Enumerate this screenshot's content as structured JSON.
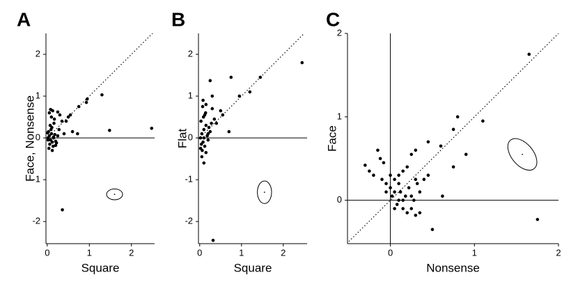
{
  "chart_data": [
    {
      "type": "scatter",
      "panel": "A",
      "x_label": "Square",
      "y_label": "Face, Nonsense",
      "xlim": [
        -0.03,
        2.55
      ],
      "ylim": [
        -2.53,
        2.5
      ],
      "xticks": [
        0,
        1,
        2
      ],
      "yticks": [
        -2,
        -1,
        0,
        1,
        2
      ],
      "hline_at_zero": true,
      "vline_at_zero": false,
      "identity_line": true,
      "ellipse": {
        "cx": 1.6,
        "cy": -1.35,
        "rx": 0.19,
        "ry": 0.13,
        "angle": 0
      },
      "series": [
        {
          "color": "#000000",
          "x": [
            0.02,
            0.05,
            0.08,
            0.1,
            0.12,
            0.15,
            0.03,
            0.06,
            0.09,
            0.14,
            0.18,
            0.2,
            0.04,
            0.07,
            0.11,
            0.16,
            0.22,
            0.25,
            0.01,
            0.05,
            0.1,
            0.13,
            0.17,
            0.3,
            0.35,
            0.12,
            0.2,
            0.28,
            0.4,
            0.45,
            0.5,
            0.55,
            0.6,
            0.72,
            0.75,
            0.93,
            0.95,
            1.3,
            1.48,
            2.48,
            0.36,
            0.08,
            0.15,
            0.02,
            0.25
          ],
          "values": [
            0.0,
            0.05,
            -0.05,
            0.1,
            -0.1,
            0.02,
            0.15,
            -0.15,
            0.2,
            -0.2,
            0.08,
            -0.08,
            -0.25,
            0.3,
            0.25,
            0.35,
            -0.12,
            0.05,
            0.12,
            0.6,
            0.5,
            0.65,
            0.45,
            0.55,
            0.4,
            -0.3,
            -0.18,
            0.2,
            0.1,
            0.4,
            0.5,
            0.55,
            0.15,
            0.1,
            0.75,
            0.85,
            0.93,
            1.03,
            0.18,
            0.23,
            -1.72,
            0.68,
            0.0,
            -0.05,
            0.62
          ]
        }
      ]
    },
    {
      "type": "scatter",
      "panel": "B",
      "x_label": "Square",
      "y_label": "Flat",
      "xlim": [
        -0.03,
        2.57
      ],
      "ylim": [
        -2.53,
        2.5
      ],
      "xticks": [
        0,
        1,
        2
      ],
      "yticks": [
        -2,
        -1,
        0,
        1,
        2
      ],
      "hline_at_zero": true,
      "vline_at_zero": false,
      "identity_line": true,
      "ellipse": {
        "cx": 1.55,
        "cy": -1.3,
        "rx": 0.17,
        "ry": 0.27,
        "angle": 0
      },
      "series": [
        {
          "color": "#000000",
          "x": [
            0.02,
            0.05,
            0.08,
            0.1,
            0.12,
            0.15,
            0.18,
            0.2,
            0.25,
            0.03,
            0.06,
            0.09,
            0.14,
            0.22,
            0.28,
            0.3,
            0.35,
            0.05,
            0.1,
            0.15,
            0.2,
            0.04,
            0.08,
            0.12,
            0.4,
            0.5,
            0.55,
            0.25,
            0.7,
            0.75,
            0.95,
            1.2,
            1.45,
            2.45,
            0.32,
            0.1,
            0.15,
            0.07,
            0.3,
            0.02
          ],
          "values": [
            0.0,
            0.1,
            -0.1,
            0.2,
            -0.2,
            0.3,
            0.05,
            -0.05,
            0.15,
            0.4,
            -0.3,
            0.5,
            0.6,
            0.25,
            0.35,
            0.7,
            0.45,
            -0.45,
            -0.6,
            0.8,
            0.1,
            -0.15,
            0.9,
            0.55,
            0.35,
            0.65,
            0.55,
            1.37,
            0.15,
            1.45,
            1.0,
            1.1,
            1.45,
            1.8,
            -2.45,
            0.0,
            -0.35,
            0.75,
            1.0,
            -0.25
          ]
        }
      ]
    },
    {
      "type": "scatter",
      "panel": "C",
      "x_label": "Nonsense",
      "y_label": "Face",
      "xlim": [
        -0.51,
        2.0
      ],
      "ylim": [
        -0.52,
        2.0
      ],
      "xticks": [
        0,
        1,
        2
      ],
      "yticks": [
        0,
        1,
        2
      ],
      "hline_at_zero": true,
      "vline_at_zero": true,
      "identity_line": true,
      "ellipse": {
        "cx": 1.57,
        "cy": 0.55,
        "rx": 0.22,
        "ry": 0.13,
        "angle": -50
      },
      "series": [
        {
          "color": "#000000",
          "x": [
            -0.3,
            -0.2,
            -0.15,
            -0.1,
            -0.05,
            0.0,
            0.02,
            0.05,
            0.08,
            0.1,
            0.12,
            0.15,
            0.18,
            0.2,
            0.22,
            0.25,
            0.28,
            0.3,
            0.32,
            0.35,
            -0.25,
            -0.12,
            -0.08,
            0.0,
            0.05,
            0.1,
            0.15,
            0.2,
            0.25,
            0.3,
            0.4,
            0.45,
            0.5,
            0.6,
            0.62,
            0.75,
            0.8,
            0.75,
            0.9,
            1.1,
            1.65,
            1.75,
            0.3,
            0.45,
            0.25,
            0.35,
            0.1,
            0.05,
            -0.05,
            0.15
          ],
          "values": [
            0.42,
            0.3,
            0.6,
            0.25,
            0.2,
            0.15,
            0.05,
            0.1,
            -0.05,
            0.0,
            0.1,
            -0.1,
            0.05,
            -0.15,
            0.15,
            -0.1,
            0.0,
            -0.18,
            0.2,
            0.1,
            0.35,
            0.5,
            0.45,
            0.3,
            0.25,
            0.2,
            0.35,
            0.4,
            0.55,
            0.6,
            0.25,
            0.7,
            -0.35,
            0.65,
            0.05,
            0.4,
            1.0,
            0.85,
            0.55,
            0.95,
            1.75,
            -0.23,
            0.25,
            0.3,
            0.05,
            -0.15,
            0.3,
            -0.1,
            0.1,
            0.0
          ]
        }
      ]
    }
  ]
}
